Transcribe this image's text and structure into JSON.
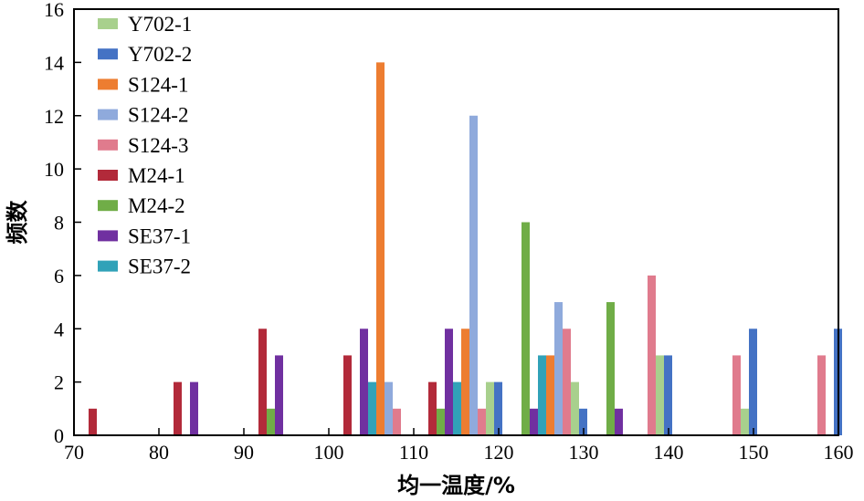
{
  "chart_data": {
    "type": "bar",
    "xlabel": "均一温度/%",
    "ylabel": "频数",
    "xlim": [
      70,
      160
    ],
    "ylim": [
      0,
      16
    ],
    "x_ticks": [
      70,
      80,
      90,
      100,
      110,
      120,
      130,
      140,
      150,
      160
    ],
    "y_ticks": [
      0,
      2,
      4,
      6,
      8,
      10,
      12,
      14,
      16
    ],
    "grid": false,
    "legend_position": "top-left",
    "bin_starts": [
      70,
      80,
      90,
      100,
      110,
      120,
      130,
      140,
      150
    ],
    "bin_width": 10,
    "series": [
      {
        "name": "Y702-1",
        "color": "#a8d08d",
        "values": [
          0,
          0,
          0,
          0,
          2,
          2,
          3,
          1,
          0
        ]
      },
      {
        "name": "Y702-2",
        "color": "#4472c4",
        "values": [
          0,
          0,
          0,
          0,
          2,
          1,
          3,
          4,
          4
        ]
      },
      {
        "name": "S124-1",
        "color": "#ed7d31",
        "values": [
          0,
          0,
          0,
          14,
          4,
          3,
          0,
          0,
          0
        ]
      },
      {
        "name": "S124-2",
        "color": "#8faadc",
        "values": [
          0,
          0,
          0,
          2,
          12,
          5,
          0,
          0,
          0
        ]
      },
      {
        "name": "S124-3",
        "color": "#e07b8d",
        "values": [
          0,
          0,
          0,
          1,
          1,
          4,
          6,
          3,
          3
        ]
      },
      {
        "name": "M24-1",
        "color": "#b22a3a",
        "values": [
          1,
          2,
          4,
          3,
          2,
          0,
          0,
          0,
          0
        ]
      },
      {
        "name": "M24-2",
        "color": "#70ad47",
        "values": [
          0,
          0,
          1,
          0,
          1,
          8,
          5,
          0,
          0
        ]
      },
      {
        "name": "SE37-1",
        "color": "#7030a0",
        "values": [
          0,
          2,
          3,
          4,
          4,
          1,
          1,
          0,
          0
        ]
      },
      {
        "name": "SE37-2",
        "color": "#31a2b8",
        "values": [
          0,
          0,
          0,
          2,
          2,
          3,
          0,
          0,
          0
        ]
      }
    ]
  }
}
